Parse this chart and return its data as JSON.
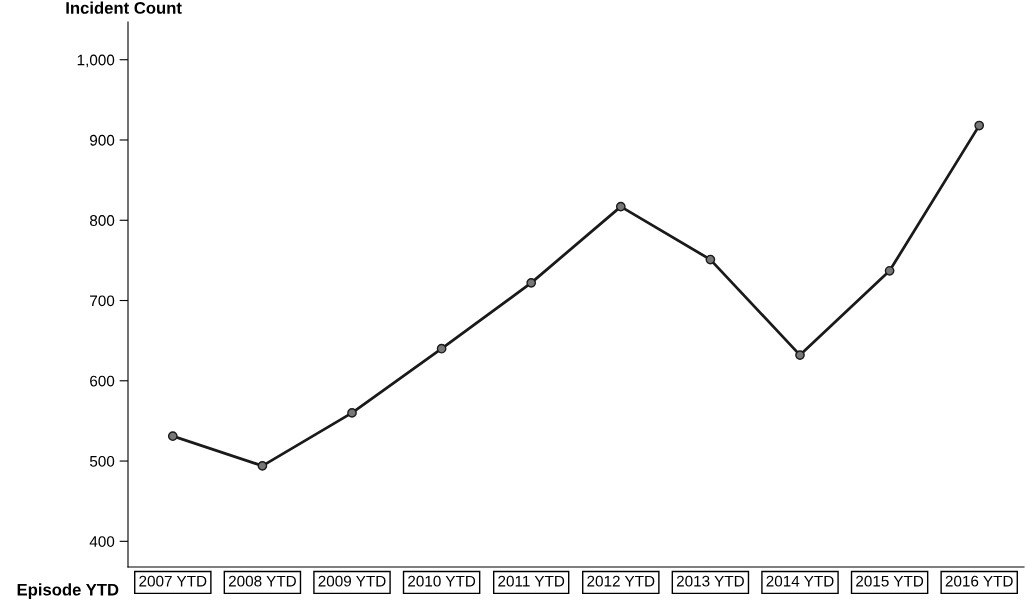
{
  "chart_data": {
    "type": "line",
    "ylabel": "Incident Count",
    "xlabel": "Episode YTD",
    "categories": [
      "2007 YTD",
      "2008 YTD",
      "2009 YTD",
      "2010 YTD",
      "2011 YTD",
      "2012 YTD",
      "2013 YTD",
      "2014 YTD",
      "2015 YTD",
      "2016 YTD"
    ],
    "series": [
      {
        "color": "#1a1a1a",
        "values": [
          531,
          494,
          560,
          640,
          722,
          817,
          751,
          632,
          737,
          918
        ]
      }
    ],
    "ylim": [
      368,
      1047
    ],
    "yticks": [
      400,
      500,
      600,
      700,
      800,
      900,
      {
        "value": 1000,
        "label": "1,000"
      }
    ],
    "marker": "circle",
    "line_style": "solid",
    "grid": false
  }
}
